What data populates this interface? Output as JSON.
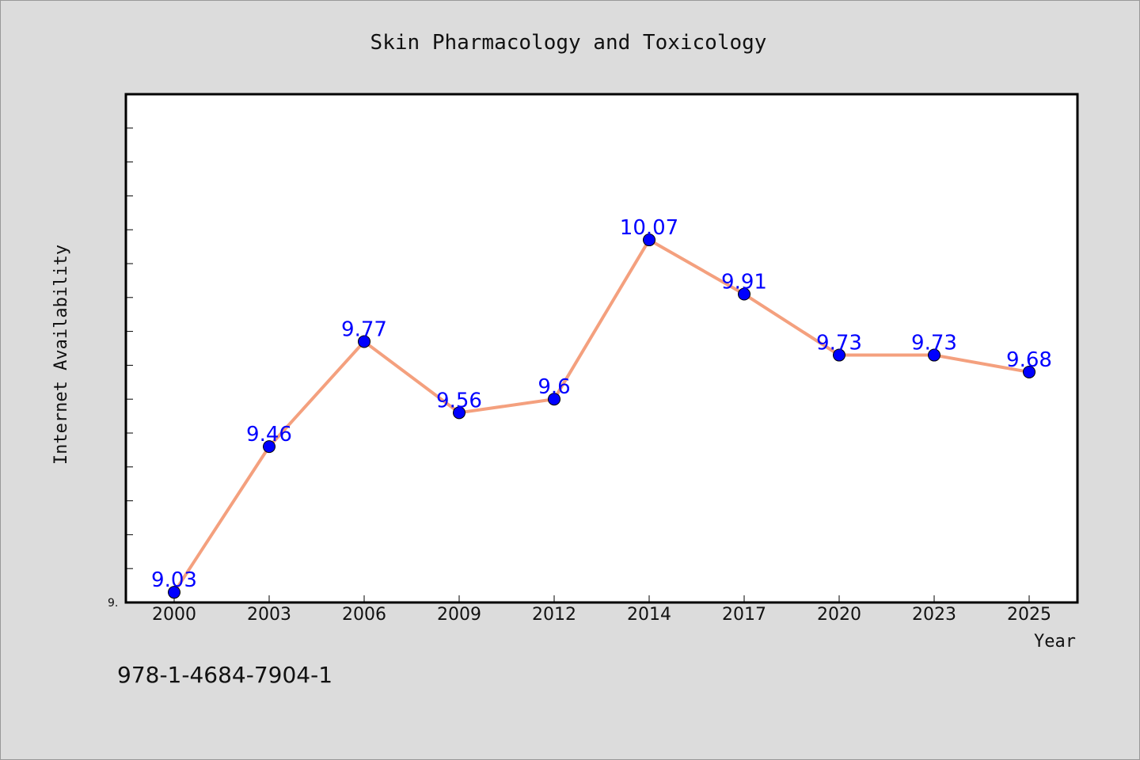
{
  "colors": {
    "background": "#dcdcdc",
    "plot_background": "#ffffff",
    "line": "#f4a07e",
    "marker": "#0000ff",
    "data_label": "#0000ff",
    "frame": "#000000"
  },
  "footer": {
    "isbn": "978-1-4684-7904-1"
  },
  "chart_data": {
    "type": "line",
    "title": "Skin Pharmacology and Toxicology",
    "xlabel": "Year",
    "ylabel": "Internet Availability",
    "categories": [
      "2000",
      "2003",
      "2006",
      "2009",
      "2012",
      "2014",
      "2017",
      "2020",
      "2023",
      "2025"
    ],
    "series": [
      {
        "values": [
          9.03,
          9.46,
          9.77,
          9.56,
          9.6,
          10.07,
          9.91,
          9.73,
          9.73,
          9.68
        ],
        "data_labels": [
          "9.03",
          "9.46",
          "9.77",
          "9.56",
          "9.6",
          "10.07",
          "9.91",
          "9.73",
          "9.73",
          "9.68"
        ]
      }
    ],
    "ylim": [
      9.0,
      10.5
    ],
    "yticks": [
      9.0,
      9.1,
      9.2,
      9.3,
      9.4,
      9.5,
      9.6,
      9.7,
      9.8,
      9.9,
      10.0,
      10.1,
      10.2,
      10.3,
      10.4
    ],
    "ytick_labels_shown": [
      "9."
    ],
    "grid": false,
    "legend": "none"
  }
}
